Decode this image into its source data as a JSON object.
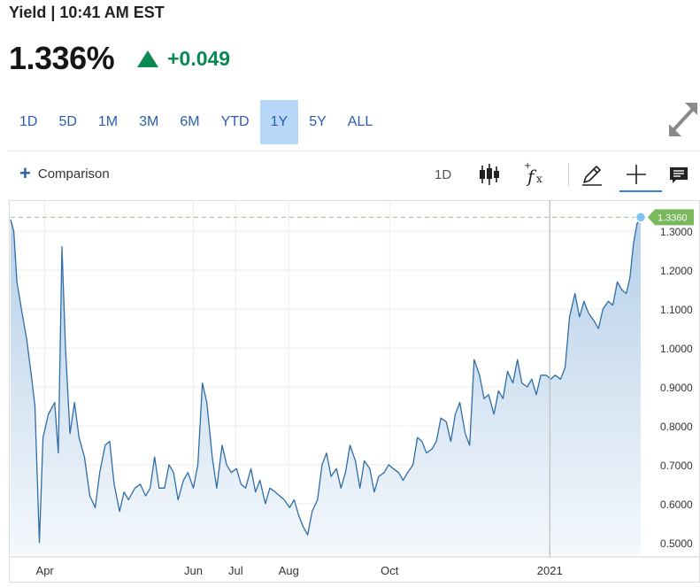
{
  "header": {
    "title": "Yield | 10:41 AM EST"
  },
  "quote": {
    "price": "1.336%",
    "change": "+0.049",
    "change_color": "#0a8a52"
  },
  "ranges": [
    {
      "label": "1D"
    },
    {
      "label": "5D"
    },
    {
      "label": "1M"
    },
    {
      "label": "3M"
    },
    {
      "label": "6M"
    },
    {
      "label": "YTD"
    },
    {
      "label": "1Y",
      "active": true
    },
    {
      "label": "5Y"
    },
    {
      "label": "ALL"
    }
  ],
  "toolbar": {
    "comparison_label": "Comparison",
    "interval_label": "1D",
    "icons": [
      "candlestick-icon",
      "function-fx-icon",
      "pencil-icon",
      "crosshair-icon",
      "comment-icon"
    ]
  },
  "colors": {
    "line": "#2e6da8",
    "area_top": "#b6cfe8",
    "area_bottom": "#f4f8fc",
    "current_price_tag": "#7ab85c",
    "marker": "#7fc3f2"
  },
  "chart_data": {
    "type": "area",
    "title": "",
    "xlabel": "",
    "ylabel": "",
    "x_tick_labels": [
      "Apr",
      "Jun",
      "Jul",
      "Aug",
      "Oct",
      "2021"
    ],
    "y_tick_labels": [
      "1.3000",
      "1.2000",
      "1.1000",
      "1.0000",
      "0.9000",
      "0.8000",
      "0.7000",
      "0.6000",
      "0.5000"
    ],
    "ylim": [
      0.47,
      1.38
    ],
    "grid": true,
    "current_value_label": "1.3360",
    "current_value": 1.336,
    "series": [
      {
        "values": [
          [
            0.0,
            1.33
          ],
          [
            0.35,
            1.3
          ],
          [
            0.7,
            1.17
          ],
          [
            1.2,
            1.1
          ],
          [
            1.8,
            1.02
          ],
          [
            2.3,
            0.93
          ],
          [
            2.7,
            0.85
          ],
          [
            3.2,
            0.5
          ],
          [
            3.6,
            0.77
          ],
          [
            4.2,
            0.83
          ],
          [
            4.9,
            0.86
          ],
          [
            5.3,
            0.73
          ],
          [
            5.7,
            1.26
          ],
          [
            6.1,
            1.0
          ],
          [
            6.6,
            0.78
          ],
          [
            7.1,
            0.86
          ],
          [
            7.6,
            0.77
          ],
          [
            8.2,
            0.72
          ],
          [
            8.8,
            0.62
          ],
          [
            9.4,
            0.59
          ],
          [
            9.9,
            0.68
          ],
          [
            10.5,
            0.75
          ],
          [
            11.0,
            0.76
          ],
          [
            11.5,
            0.65
          ],
          [
            12.1,
            0.58
          ],
          [
            12.6,
            0.63
          ],
          [
            13.1,
            0.61
          ],
          [
            13.8,
            0.64
          ],
          [
            14.4,
            0.65
          ],
          [
            15.0,
            0.62
          ],
          [
            15.5,
            0.64
          ],
          [
            16.0,
            0.72
          ],
          [
            16.5,
            0.64
          ],
          [
            17.1,
            0.64
          ],
          [
            17.6,
            0.7
          ],
          [
            18.1,
            0.68
          ],
          [
            18.6,
            0.61
          ],
          [
            19.2,
            0.66
          ],
          [
            19.7,
            0.68
          ],
          [
            20.3,
            0.64
          ],
          [
            20.8,
            0.7
          ],
          [
            21.3,
            0.91
          ],
          [
            21.8,
            0.86
          ],
          [
            22.4,
            0.72
          ],
          [
            22.9,
            0.64
          ],
          [
            23.5,
            0.75
          ],
          [
            24.0,
            0.7
          ],
          [
            24.5,
            0.68
          ],
          [
            25.1,
            0.69
          ],
          [
            25.6,
            0.65
          ],
          [
            26.1,
            0.64
          ],
          [
            26.7,
            0.69
          ],
          [
            27.2,
            0.63
          ],
          [
            27.7,
            0.66
          ],
          [
            28.3,
            0.6
          ],
          [
            28.8,
            0.64
          ],
          [
            29.4,
            0.63
          ],
          [
            29.9,
            0.62
          ],
          [
            30.4,
            0.61
          ],
          [
            31.0,
            0.59
          ],
          [
            31.5,
            0.61
          ],
          [
            32.0,
            0.57
          ],
          [
            32.5,
            0.54
          ],
          [
            33.0,
            0.52
          ],
          [
            33.5,
            0.58
          ],
          [
            34.1,
            0.61
          ],
          [
            34.6,
            0.7
          ],
          [
            35.1,
            0.73
          ],
          [
            35.6,
            0.67
          ],
          [
            36.2,
            0.69
          ],
          [
            36.7,
            0.64
          ],
          [
            37.2,
            0.68
          ],
          [
            37.7,
            0.75
          ],
          [
            38.3,
            0.71
          ],
          [
            38.8,
            0.64
          ],
          [
            39.3,
            0.71
          ],
          [
            39.9,
            0.69
          ],
          [
            40.4,
            0.63
          ],
          [
            40.9,
            0.67
          ],
          [
            41.5,
            0.68
          ],
          [
            42.0,
            0.7
          ],
          [
            42.5,
            0.69
          ],
          [
            43.1,
            0.68
          ],
          [
            43.6,
            0.66
          ],
          [
            44.1,
            0.68
          ],
          [
            44.7,
            0.7
          ],
          [
            45.2,
            0.77
          ],
          [
            45.7,
            0.76
          ],
          [
            46.2,
            0.73
          ],
          [
            46.8,
            0.74
          ],
          [
            47.3,
            0.76
          ],
          [
            47.8,
            0.82
          ],
          [
            48.4,
            0.81
          ],
          [
            48.9,
            0.76
          ],
          [
            49.4,
            0.83
          ],
          [
            49.9,
            0.86
          ],
          [
            50.5,
            0.78
          ],
          [
            51.0,
            0.75
          ],
          [
            51.5,
            0.97
          ],
          [
            52.1,
            0.93
          ],
          [
            52.6,
            0.87
          ],
          [
            53.1,
            0.88
          ],
          [
            53.7,
            0.83
          ],
          [
            54.2,
            0.89
          ],
          [
            54.7,
            0.87
          ],
          [
            55.2,
            0.94
          ],
          [
            55.8,
            0.91
          ],
          [
            56.3,
            0.97
          ],
          [
            56.8,
            0.91
          ],
          [
            57.4,
            0.9
          ],
          [
            57.9,
            0.92
          ],
          [
            58.4,
            0.88
          ],
          [
            58.9,
            0.93
          ],
          [
            59.5,
            0.93
          ],
          [
            60.0,
            0.92
          ],
          [
            60.5,
            0.93
          ],
          [
            61.1,
            0.92
          ],
          [
            61.6,
            0.95
          ],
          [
            62.1,
            1.08
          ],
          [
            62.7,
            1.14
          ],
          [
            63.2,
            1.08
          ],
          [
            63.7,
            1.12
          ],
          [
            64.2,
            1.09
          ],
          [
            64.8,
            1.07
          ],
          [
            65.3,
            1.05
          ],
          [
            65.8,
            1.1
          ],
          [
            66.4,
            1.12
          ],
          [
            66.9,
            1.11
          ],
          [
            67.4,
            1.17
          ],
          [
            67.9,
            1.15
          ],
          [
            68.4,
            1.14
          ],
          [
            68.8,
            1.18
          ],
          [
            69.2,
            1.27
          ],
          [
            69.6,
            1.32
          ],
          [
            70.0,
            1.336
          ]
        ]
      }
    ]
  }
}
